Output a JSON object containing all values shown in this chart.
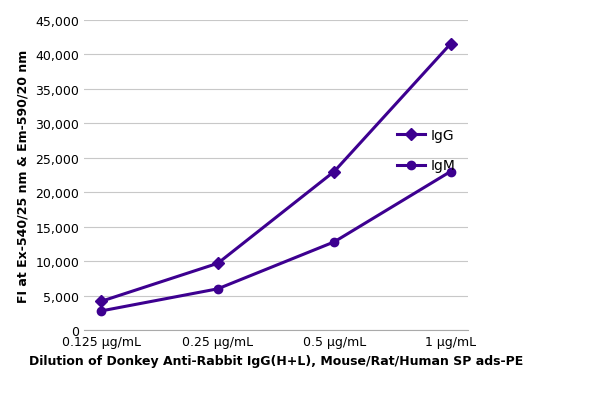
{
  "x_positions": [
    1,
    2,
    3,
    4
  ],
  "x_labels": [
    "0.125 μg/mL",
    "0.25 μg/mL",
    "0.5 μg/mL",
    "1 μg/mL"
  ],
  "IgG_values": [
    4200,
    9700,
    23000,
    41500
  ],
  "IgM_values": [
    2800,
    6000,
    12800,
    23000
  ],
  "line_color": "#3d0090",
  "IgG_marker": "D",
  "IgM_marker": "o",
  "marker_size": 6,
  "linewidth": 2.2,
  "ylabel": "FI at Ex-540/25 nm & Em-590/20 nm",
  "xlabel": "Dilution of Donkey Anti-Rabbit IgG(H+L), Mouse/Rat/Human SP ads-PE",
  "ylim": [
    0,
    45000
  ],
  "yticks": [
    0,
    5000,
    10000,
    15000,
    20000,
    25000,
    30000,
    35000,
    40000,
    45000
  ],
  "legend_labels": [
    "IgG",
    "IgM"
  ],
  "bg_color": "#ffffff",
  "grid_color": "#c8c8c8",
  "ylabel_fontsize": 9,
  "xlabel_fontsize": 9,
  "tick_fontsize": 9,
  "legend_fontsize": 10
}
